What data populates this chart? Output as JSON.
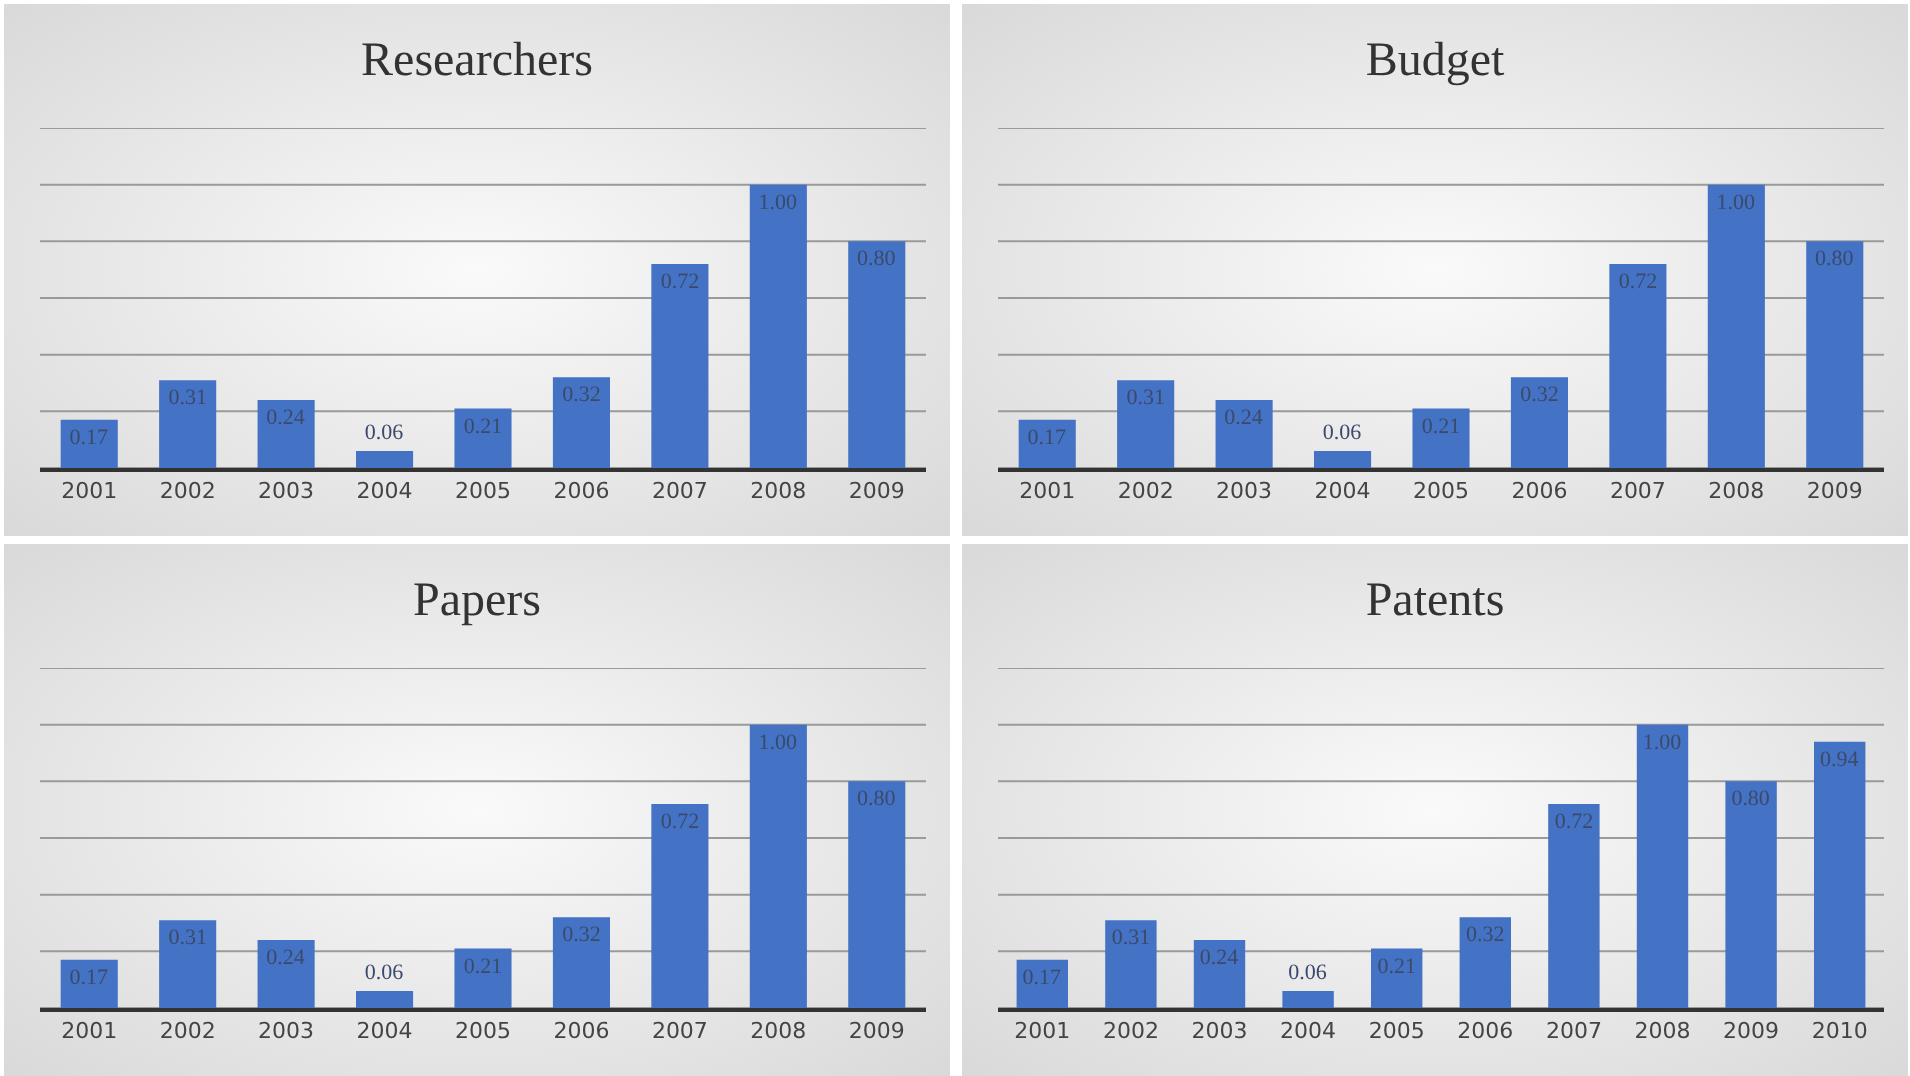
{
  "chart_data": [
    {
      "type": "bar",
      "title": "Researchers",
      "categories": [
        "2001",
        "2002",
        "2003",
        "2004",
        "2005",
        "2006",
        "2007",
        "2008",
        "2009"
      ],
      "values": [
        0.17,
        0.31,
        0.24,
        0.06,
        0.21,
        0.32,
        0.72,
        1.0,
        0.8
      ],
      "value_labels": [
        "0.17",
        "0.31",
        "0.24",
        "0.06",
        "0.21",
        "0.32",
        "0.72",
        "1.00",
        "0.80"
      ],
      "color": "#4472c4",
      "ylim": [
        0,
        1.2
      ],
      "yticks": [
        {
          "value": 0,
          "label": null
        },
        {
          "value": 0.2,
          "label": null
        },
        {
          "value": 0.4,
          "label": null
        },
        {
          "value": 0.6,
          "label": null
        },
        {
          "value": 0.8,
          "label": null
        },
        {
          "value": 1.0,
          "label": null
        },
        {
          "value": 1.2,
          "label": null
        }
      ],
      "grid": "y",
      "tick_labels": "x"
    },
    {
      "type": "bar",
      "title": "Budget",
      "categories": [
        "2001",
        "2002",
        "2003",
        "2004",
        "2005",
        "2006",
        "2007",
        "2008",
        "2009"
      ],
      "values": [
        0.17,
        0.31,
        0.24,
        0.06,
        0.21,
        0.32,
        0.72,
        1.0,
        0.8
      ],
      "value_labels": [
        "0.17",
        "0.31",
        "0.24",
        "0.06",
        "0.21",
        "0.32",
        "0.72",
        "1.00",
        "0.80"
      ],
      "color": "#4472c4",
      "ylim": [
        0,
        1.2
      ],
      "yticks": [
        {
          "value": 0,
          "label": null
        },
        {
          "value": 0.2,
          "label": null
        },
        {
          "value": 0.4,
          "label": null
        },
        {
          "value": 0.6,
          "label": null
        },
        {
          "value": 0.8,
          "label": null
        },
        {
          "value": 1.0,
          "label": null
        },
        {
          "value": 1.2,
          "label": null
        }
      ],
      "grid": "y",
      "tick_labels": "x"
    },
    {
      "type": "bar",
      "title": "Papers",
      "categories": [
        "2001",
        "2002",
        "2003",
        "2004",
        "2005",
        "2006",
        "2007",
        "2008",
        "2009"
      ],
      "values": [
        0.17,
        0.31,
        0.24,
        0.06,
        0.21,
        0.32,
        0.72,
        1.0,
        0.8
      ],
      "value_labels": [
        "0.17",
        "0.31",
        "0.24",
        "0.06",
        "0.21",
        "0.32",
        "0.72",
        "1.00",
        "0.80"
      ],
      "color": "#4472c4",
      "ylim": [
        0,
        1.2
      ],
      "yticks": [
        {
          "value": 0,
          "label": null
        },
        {
          "value": 0.2,
          "label": null
        },
        {
          "value": 0.4,
          "label": null
        },
        {
          "value": 0.6,
          "label": null
        },
        {
          "value": 0.8,
          "label": null
        },
        {
          "value": 1.0,
          "label": null
        },
        {
          "value": 1.2,
          "label": null
        }
      ],
      "grid": "y",
      "tick_labels": "x"
    },
    {
      "type": "bar",
      "title": "Patents",
      "categories": [
        "2001",
        "2002",
        "2003",
        "2004",
        "2005",
        "2006",
        "2007",
        "2008",
        "2009",
        "2010"
      ],
      "values": [
        0.17,
        0.31,
        0.24,
        0.06,
        0.21,
        0.32,
        0.72,
        1.0,
        0.8,
        0.94
      ],
      "value_labels": [
        "0.17",
        "0.31",
        "0.24",
        "0.06",
        "0.21",
        "0.32",
        "0.72",
        "1.00",
        "0.80",
        "0.94"
      ],
      "color": "#4472c4",
      "ylim": [
        0,
        1.2
      ],
      "yticks": [
        {
          "value": 0,
          "label": null
        },
        {
          "value": 0.2,
          "label": null
        },
        {
          "value": 0.4,
          "label": null
        },
        {
          "value": 0.6,
          "label": null
        },
        {
          "value": 0.8,
          "label": null
        },
        {
          "value": 1.0,
          "label": null
        },
        {
          "value": 1.2,
          "label": null
        }
      ],
      "grid": "y",
      "tick_labels": "x"
    }
  ]
}
